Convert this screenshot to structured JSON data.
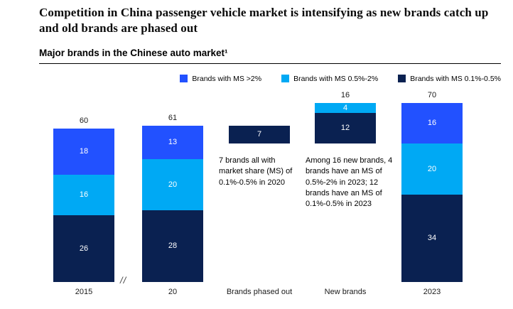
{
  "header": {
    "title": "Competition in China passenger vehicle market is intensifying as new brands catch up and old brands are phased out"
  },
  "exhibit": {
    "title": "Major brands in the Chinese auto market¹"
  },
  "chart_data": {
    "type": "bar",
    "subtype": "stacked-bar-waterfall",
    "title": "Major brands in the Chinese auto market¹",
    "legend_position": "top-right",
    "grid": false,
    "ylim": [
      0,
      74
    ],
    "categories": [
      "2015",
      "20",
      "Brands phased out",
      "New brands",
      "2023"
    ],
    "axis_break_label": "//",
    "series_colors": {
      "ms_gt_2": "#2251ff",
      "ms_05_2": "#00a9f4",
      "ms_01_05": "#0a2151"
    },
    "legend": [
      {
        "key": "ms_gt_2",
        "label": "Brands with MS >2%",
        "color": "#2251ff"
      },
      {
        "key": "ms_05_2",
        "label": "Brands with MS 0.5%-2%",
        "color": "#00a9f4"
      },
      {
        "key": "ms_01_05",
        "label": "Brands with MS 0.1%-0.5%",
        "color": "#0a2151"
      }
    ],
    "bars": [
      {
        "category": "2015",
        "base": 0,
        "total": 60,
        "total_label": "60",
        "segments": [
          {
            "series": "ms_01_05",
            "value": 26
          },
          {
            "series": "ms_05_2",
            "value": 16
          },
          {
            "series": "ms_gt_2",
            "value": 18
          }
        ]
      },
      {
        "category": "20",
        "base": 0,
        "total": 61,
        "total_label": "61",
        "segments": [
          {
            "series": "ms_01_05",
            "value": 28
          },
          {
            "series": "ms_05_2",
            "value": 20
          },
          {
            "series": "ms_gt_2",
            "value": 13
          }
        ]
      },
      {
        "category": "Brands phased out",
        "base": 54,
        "total": 7,
        "total_label": null,
        "segments": [
          {
            "series": "ms_01_05",
            "value": 7
          }
        ]
      },
      {
        "category": "New brands",
        "base": 54,
        "total": 16,
        "total_label": "16",
        "segments": [
          {
            "series": "ms_01_05",
            "value": 12
          },
          {
            "series": "ms_05_2",
            "value": 4
          }
        ]
      },
      {
        "category": "2023",
        "base": 0,
        "total": 70,
        "total_label": "70",
        "segments": [
          {
            "series": "ms_01_05",
            "value": 34
          },
          {
            "series": "ms_05_2",
            "value": 20
          },
          {
            "series": "ms_gt_2",
            "value": 16
          }
        ]
      }
    ],
    "annotations": [
      {
        "text": "7 brands all with market share (MS) of 0.1%-0.5% in 2020"
      },
      {
        "text": "Among 16 new brands, 4 brands have an MS of 0.5%-2% in 2023; 12 brands have an MS of 0.1%-0.5% in 2023"
      }
    ]
  }
}
